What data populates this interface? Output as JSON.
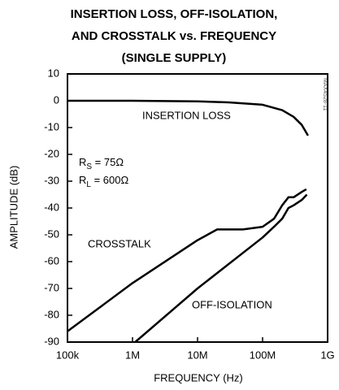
{
  "chart_data": {
    "type": "line",
    "title": [
      "INSERTION LOSS, OFF-ISOLATION,",
      "AND CROSSTALK vs. FREQUENCY",
      "(SINGLE SUPPLY)"
    ],
    "x_label": "FREQUENCY (Hz)",
    "y_label": "AMPLITUDE (dB)",
    "x_scale": "log",
    "xlim": [
      100000,
      1000000000
    ],
    "xticks": [
      {
        "value": 100000,
        "label": "100k"
      },
      {
        "value": 1000000,
        "label": "1M"
      },
      {
        "value": 10000000,
        "label": "10M"
      },
      {
        "value": 100000000,
        "label": "100M"
      },
      {
        "value": 1000000000,
        "label": "1G"
      }
    ],
    "ylim": [
      -90,
      10
    ],
    "yticks": [
      10,
      0,
      -10,
      -20,
      -30,
      -40,
      -50,
      -60,
      -70,
      -80,
      -90
    ],
    "grid": false,
    "series": [
      {
        "name": "INSERTION LOSS",
        "color": "#000000",
        "x": [
          100000,
          1000000,
          10000000,
          30000000,
          100000000,
          200000000,
          300000000,
          400000000,
          500000000
        ],
        "values": [
          0,
          0,
          -0.2,
          -0.6,
          -1.5,
          -3.5,
          -6,
          -9,
          -13
        ]
      },
      {
        "name": "CROSSTALK",
        "color": "#000000",
        "x": [
          100000,
          1000000,
          10000000,
          20000000,
          50000000,
          100000000,
          150000000,
          200000000,
          250000000,
          300000000,
          400000000,
          470000000
        ],
        "values": [
          -86,
          -68,
          -52,
          -48,
          -48,
          -47,
          -44,
          -39,
          -36,
          -36,
          -34,
          -33
        ]
      },
      {
        "name": "OFF-ISOLATION",
        "color": "#000000",
        "x": [
          1100000,
          10000000,
          100000000,
          150000000,
          200000000,
          250000000,
          300000000,
          400000000,
          480000000
        ],
        "values": [
          -90,
          -70,
          -51,
          -47,
          -44,
          -40,
          -39,
          -37,
          -35
        ]
      }
    ],
    "annotations": [
      {
        "text": "R",
        "sub": "S",
        "rest": " = 75Ω"
      },
      {
        "text": "R",
        "sub": "L",
        "rest": " = 600Ω"
      }
    ],
    "figure_code": "MAX4528-11"
  }
}
